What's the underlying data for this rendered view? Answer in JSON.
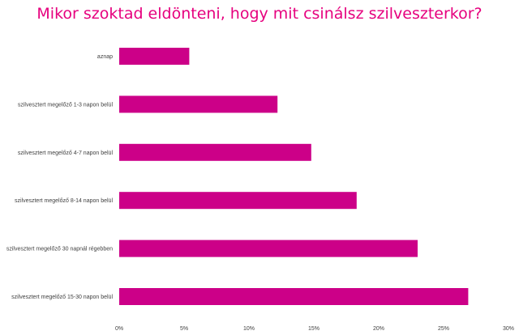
{
  "chart_data": {
    "type": "bar",
    "orientation": "horizontal",
    "title": "Mikor szoktad eldönteni, hogy mit csinálsz szilveszterkor?",
    "categories": [
      "aznap",
      "szilvesztert megelőző 1-3 napon belül",
      "szilvesztert megelőző 4-7 napon belül",
      "szilvesztert megelőző 8-14 napon belül",
      "szilvesztert megelőző 30 napnál régebben",
      "szilvesztert megelőző 15-30 napon belül"
    ],
    "values": [
      5.4,
      12.2,
      14.8,
      18.3,
      23.0,
      26.9
    ],
    "xlim": [
      0,
      30
    ],
    "xticks": [
      0,
      5,
      10,
      15,
      20,
      25,
      30
    ],
    "xtick_labels": [
      "0%",
      "5%",
      "10%",
      "15%",
      "20%",
      "25%",
      "30%"
    ],
    "grid": false,
    "legend": "none",
    "bar_color": "#cc0088",
    "title_color": "#e6007e"
  }
}
